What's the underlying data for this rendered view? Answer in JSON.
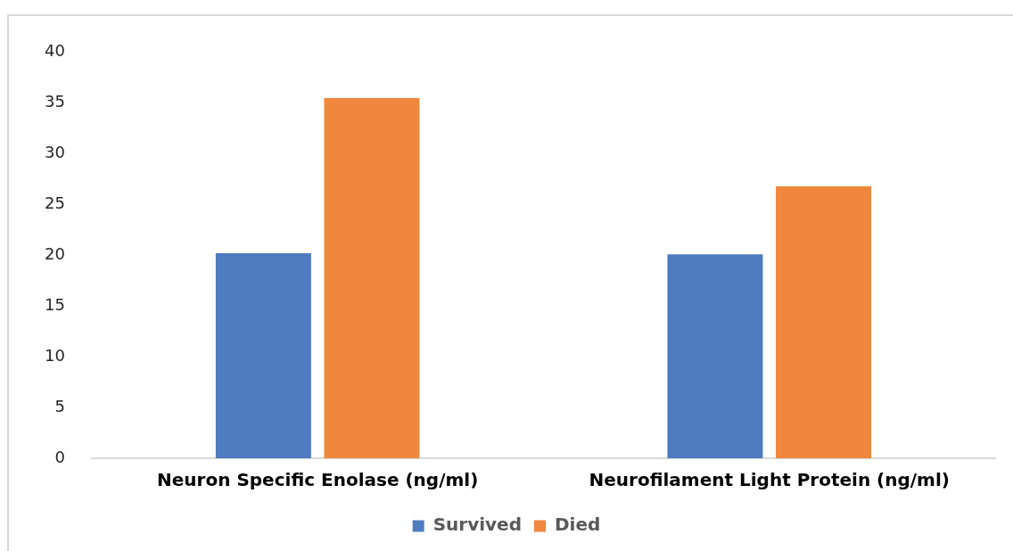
{
  "chart_data": {
    "type": "bar",
    "categories": [
      "Neuron Specific Enolase (ng/ml)",
      "Neurofilament Light Protein (ng/ml)"
    ],
    "series": [
      {
        "name": "Survived",
        "color": "#4f7bbf",
        "values": [
          20.2,
          20.1
        ]
      },
      {
        "name": "Died",
        "color": "#ef873c",
        "values": [
          35.5,
          26.8
        ]
      }
    ],
    "ylim": [
      0,
      40
    ],
    "yticks": [
      0,
      5,
      10,
      15,
      20,
      25,
      30,
      35,
      40
    ],
    "grid": false,
    "legend": "bottom"
  }
}
